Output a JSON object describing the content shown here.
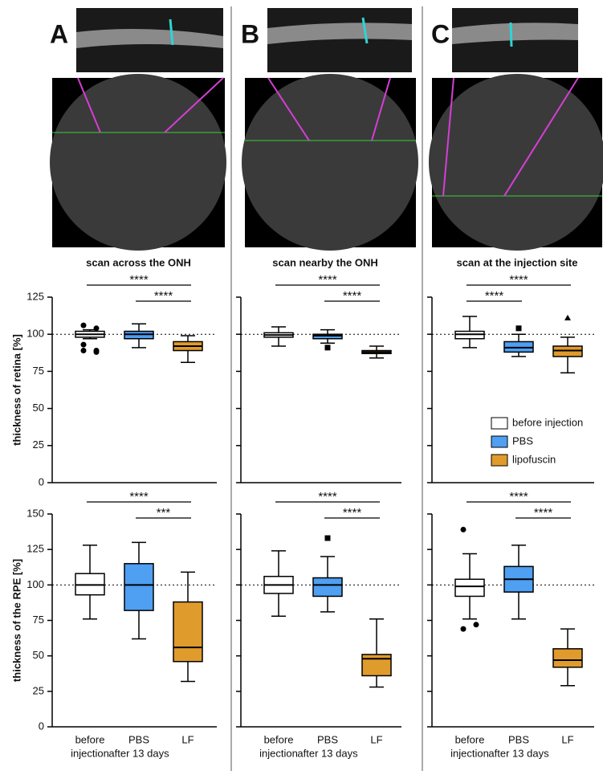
{
  "panels": [
    {
      "letter": "A"
    },
    {
      "letter": "B"
    },
    {
      "letter": "C"
    }
  ],
  "groups": [
    {
      "name": "before injection",
      "color": "#ffffff"
    },
    {
      "name": "PBS",
      "color": "#4f9ff2"
    },
    {
      "name": "lipofuscin",
      "color": "#e09b2d"
    }
  ],
  "chart_data": [
    {
      "type": "box",
      "title": "scan across the ONH",
      "ylabel": "thickness of retina [%]",
      "ylim": [
        0,
        125
      ],
      "yticks": [
        0,
        25,
        50,
        75,
        100,
        125
      ],
      "tick_labels": true,
      "reference_line": 100,
      "boxes": [
        {
          "whislo": 97,
          "q1": 98,
          "med": 100,
          "q3": 102,
          "whishi": 103,
          "fliers": [
            106,
            104,
            93,
            89,
            89,
            88
          ],
          "marker": "circle"
        },
        {
          "whislo": 91,
          "q1": 97,
          "med": 100,
          "q3": 102,
          "whishi": 107,
          "fliers": []
        },
        {
          "whislo": 81,
          "q1": 89,
          "med": 92,
          "q3": 95,
          "whishi": 99,
          "fliers": []
        }
      ],
      "brackets": [
        {
          "between": [
            0,
            2
          ],
          "label": "****"
        },
        {
          "between": [
            1,
            2
          ],
          "label": "****"
        }
      ]
    },
    {
      "type": "box",
      "title": "scan nearby the ONH",
      "ylim": [
        0,
        125
      ],
      "yticks": [
        0,
        25,
        50,
        75,
        100,
        125
      ],
      "tick_labels": false,
      "reference_line": 100,
      "boxes": [
        {
          "whislo": 92,
          "q1": 98,
          "med": 99.5,
          "q3": 101,
          "whishi": 105,
          "fliers": []
        },
        {
          "whislo": 94,
          "q1": 97,
          "med": 99,
          "q3": 100,
          "whishi": 103,
          "fliers": [
            91
          ],
          "marker": "square"
        },
        {
          "whislo": 84,
          "q1": 87,
          "med": 88,
          "q3": 89,
          "whishi": 92,
          "fliers": []
        }
      ],
      "brackets": [
        {
          "between": [
            0,
            2
          ],
          "label": "****"
        },
        {
          "between": [
            1,
            2
          ],
          "label": "****"
        }
      ]
    },
    {
      "type": "box",
      "title": "scan at the injection site",
      "ylim": [
        0,
        125
      ],
      "yticks": [
        0,
        25,
        50,
        75,
        100,
        125
      ],
      "tick_labels": false,
      "reference_line": 100,
      "legend": "lower right",
      "boxes": [
        {
          "whislo": 91,
          "q1": 97,
          "med": 100,
          "q3": 102,
          "whishi": 112,
          "fliers": []
        },
        {
          "whislo": 85,
          "q1": 88,
          "med": 91,
          "q3": 95,
          "whishi": 100,
          "fliers": [
            104
          ],
          "marker": "square"
        },
        {
          "whislo": 74,
          "q1": 85,
          "med": 89,
          "q3": 92,
          "whishi": 98,
          "fliers": [
            111
          ],
          "marker": "triangle"
        }
      ],
      "brackets": [
        {
          "between": [
            0,
            2
          ],
          "label": "****"
        },
        {
          "between": [
            0,
            1
          ],
          "label": "****"
        }
      ]
    },
    {
      "type": "box",
      "ylabel": "thickness of the RPE [%]",
      "ylim": [
        0,
        150
      ],
      "yticks": [
        0,
        25,
        50,
        75,
        100,
        125,
        150
      ],
      "tick_labels": true,
      "reference_line": 100,
      "categories": [
        [
          "before",
          "injection"
        ],
        [
          "PBS",
          "after 13 days"
        ],
        [
          "LF"
        ]
      ],
      "boxes": [
        {
          "whislo": 76,
          "q1": 93,
          "med": 100,
          "q3": 108,
          "whishi": 128,
          "fliers": []
        },
        {
          "whislo": 62,
          "q1": 82,
          "med": 100,
          "q3": 115,
          "whishi": 130,
          "fliers": []
        },
        {
          "whislo": 32,
          "q1": 46,
          "med": 56,
          "q3": 88,
          "whishi": 109,
          "fliers": []
        }
      ],
      "brackets": [
        {
          "between": [
            0,
            2
          ],
          "label": "****"
        },
        {
          "between": [
            1,
            2
          ],
          "label": "***"
        }
      ]
    },
    {
      "type": "box",
      "ylim": [
        0,
        150
      ],
      "yticks": [
        0,
        25,
        50,
        75,
        100,
        125,
        150
      ],
      "tick_labels": false,
      "reference_line": 100,
      "categories": [
        [
          "before",
          "injection"
        ],
        [
          "PBS",
          "after 13 days"
        ],
        [
          "LF"
        ]
      ],
      "boxes": [
        {
          "whislo": 78,
          "q1": 94,
          "med": 100,
          "q3": 106,
          "whishi": 124,
          "fliers": []
        },
        {
          "whislo": 81,
          "q1": 92,
          "med": 100,
          "q3": 105,
          "whishi": 120,
          "fliers": [
            133
          ],
          "marker": "square"
        },
        {
          "whislo": 28,
          "q1": 36,
          "med": 48,
          "q3": 51,
          "whishi": 76,
          "fliers": []
        }
      ],
      "brackets": [
        {
          "between": [
            0,
            2
          ],
          "label": "****"
        },
        {
          "between": [
            1,
            2
          ],
          "label": "****"
        }
      ]
    },
    {
      "type": "box",
      "ylim": [
        0,
        150
      ],
      "yticks": [
        0,
        25,
        50,
        75,
        100,
        125,
        150
      ],
      "tick_labels": false,
      "reference_line": 100,
      "categories": [
        [
          "before",
          "injection"
        ],
        [
          "PBS",
          "after 13 days"
        ],
        [
          "LF"
        ]
      ],
      "boxes": [
        {
          "whislo": 76,
          "q1": 92,
          "med": 99,
          "q3": 104,
          "whishi": 122,
          "fliers": [
            139,
            72,
            69
          ],
          "marker": "circle"
        },
        {
          "whislo": 76,
          "q1": 95,
          "med": 104,
          "q3": 113,
          "whishi": 128,
          "fliers": []
        },
        {
          "whislo": 29,
          "q1": 42,
          "med": 47,
          "q3": 55,
          "whishi": 69,
          "fliers": []
        }
      ],
      "brackets": [
        {
          "between": [
            0,
            2
          ],
          "label": "****"
        },
        {
          "between": [
            1,
            2
          ],
          "label": "****"
        }
      ]
    }
  ]
}
